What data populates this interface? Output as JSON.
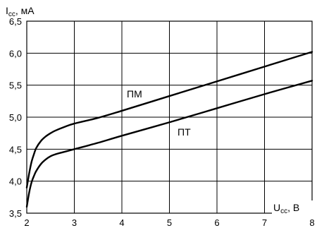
{
  "chart_data": {
    "type": "line",
    "x_label": {
      "main": "U",
      "sub": "cc",
      "suffix": ", В"
    },
    "y_label": {
      "main": "I",
      "sub": "cc",
      "suffix": ", мА"
    },
    "xlim": [
      2,
      8
    ],
    "ylim": [
      3.5,
      6.5
    ],
    "x_ticks": [
      2,
      3,
      4,
      5,
      6,
      7,
      8
    ],
    "x_tick_labels": [
      "2",
      "3",
      "4",
      "5",
      "6",
      "7",
      "8"
    ],
    "y_ticks": [
      3.5,
      4.0,
      4.5,
      5.0,
      5.5,
      6.0,
      6.5
    ],
    "y_tick_labels": [
      "3,5",
      "4,0",
      "4,5",
      "5,0",
      "5,5",
      "6,0",
      "6,5"
    ],
    "grid": true,
    "colors": {
      "line": "#000000",
      "grid": "#000000",
      "background": "#ffffff"
    },
    "series": [
      {
        "name": "ПМ",
        "x": [
          2.0,
          2.05,
          2.1,
          2.15,
          2.2,
          2.3,
          2.4,
          2.5,
          2.6,
          2.8,
          3.0,
          3.5,
          4.0,
          5.0,
          6.0,
          7.0,
          8.0
        ],
        "y": [
          3.9,
          4.12,
          4.3,
          4.42,
          4.52,
          4.63,
          4.7,
          4.75,
          4.79,
          4.85,
          4.9,
          4.99,
          5.1,
          5.33,
          5.56,
          5.79,
          6.02
        ]
      },
      {
        "name": "ПТ",
        "x": [
          2.0,
          2.05,
          2.1,
          2.15,
          2.2,
          2.3,
          2.4,
          2.5,
          2.6,
          2.8,
          3.0,
          3.5,
          4.0,
          5.0,
          6.0,
          7.0,
          8.0
        ],
        "y": [
          3.6,
          3.82,
          3.98,
          4.08,
          4.16,
          4.27,
          4.34,
          4.39,
          4.42,
          4.46,
          4.5,
          4.6,
          4.71,
          4.92,
          5.14,
          5.36,
          5.57
        ]
      }
    ]
  }
}
